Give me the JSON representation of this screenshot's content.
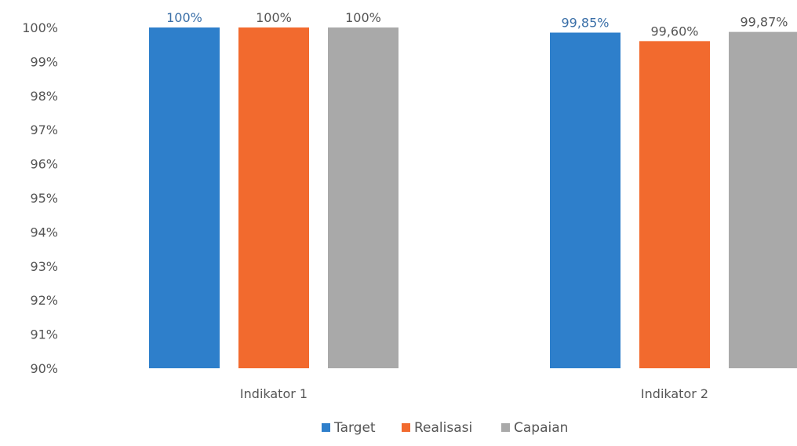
{
  "chart_data": {
    "type": "bar",
    "categories": [
      "Indikator 1",
      "Indikator 2"
    ],
    "series": [
      {
        "name": "Target",
        "color": "#2E7FCB",
        "values": [
          100,
          99.85
        ],
        "labels": [
          "100%",
          "99,85%"
        ]
      },
      {
        "name": "Realisasi",
        "color": "#F26A2E",
        "values": [
          100,
          99.6
        ],
        "labels": [
          "100%",
          "99,60%"
        ]
      },
      {
        "name": "Capaian",
        "color": "#A9A9A9",
        "values": [
          100,
          99.87
        ],
        "labels": [
          "100%",
          "99,87%"
        ]
      }
    ],
    "ylim": [
      90,
      100
    ],
    "yticks": [
      "90%",
      "91%",
      "92%",
      "93%",
      "94%",
      "95%",
      "96%",
      "97%",
      "98%",
      "99%",
      "100%"
    ],
    "legend_position": "bottom",
    "grid": false,
    "title": "",
    "xlabel": "",
    "ylabel": ""
  }
}
